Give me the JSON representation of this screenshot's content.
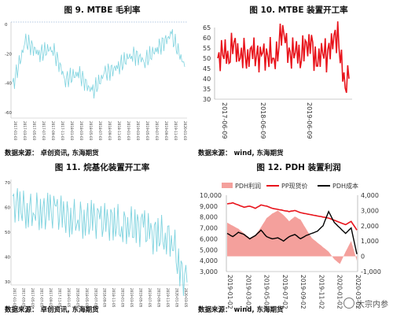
{
  "panels": {
    "p9": {
      "title": "图 9. MTBE 毛利率",
      "source": "数据来源： 卓创资讯, 东海期货"
    },
    "p10": {
      "title": "图 10. MTBE 装置开工率",
      "source": "数据来源： wind, 东海期货"
    },
    "p11": {
      "title": "图 11. 烷基化装置开工率",
      "source": "数据来源： 卓创资讯, 东海期货"
    },
    "p12": {
      "title": "图 12. PDH 装置利润",
      "source": "数据来源： wind, 东海期货"
    }
  },
  "watermark": "大宗内参",
  "colors": {
    "cyan": "#7fd3df",
    "red": "#e8131b",
    "pink": "#f4a09c",
    "black": "#000000"
  },
  "chart_data": [
    {
      "id": "mtbe-margin",
      "type": "line",
      "title": "",
      "x": [
        "2017-01-03",
        "2017-04-03",
        "2017-07-03",
        "2017-10-03",
        "2018-01-03",
        "2018-04-03",
        "2018-07-03",
        "2018-10-03",
        "2019-01-03",
        "2019-04-03",
        "2019-07-03",
        "2019-10-03",
        "2020-01-03",
        "2020-03-03"
      ],
      "yticks": [
        "0",
        "-20",
        "-40",
        "-60"
      ],
      "ylim": [
        -70,
        5
      ],
      "xticks": [
        "2017-01-03",
        "2017-03-03",
        "2017-05-03",
        "2017-07-03",
        "2017-09-03",
        "2017-11-03",
        "2018-01-03",
        "2018-03-03",
        "2018-05-03",
        "2018-07-03",
        "2018-09-03",
        "2018-11-03",
        "2019-01-03",
        "2019-03-03",
        "2019-05-03",
        "2019-07-03",
        "2019-09-03",
        "2019-11-03",
        "2020-01-03"
      ],
      "series": [
        {
          "values": [
            -45,
            -10,
            -20,
            -15,
            -40,
            -35,
            -50,
            -35,
            -30,
            -20,
            -25,
            -15,
            -5,
            -30
          ]
        }
      ],
      "grid": false
    },
    {
      "id": "mtbe-operating-rate",
      "type": "line",
      "title": "",
      "yticks": [
        "65",
        "60",
        "55",
        "50",
        "45",
        "40",
        "35",
        "30"
      ],
      "ylim": [
        30,
        65
      ],
      "xticks": [
        "2017-06-09",
        "2018-06-09",
        "2019-06-09"
      ],
      "series": [
        {
          "values": [
            47,
            53,
            56,
            50,
            58,
            52,
            48,
            54,
            50,
            57,
            52,
            48,
            52,
            49,
            55,
            50,
            54,
            62,
            58,
            50,
            54,
            57,
            50,
            55,
            53,
            57,
            49,
            52,
            56,
            50,
            53,
            58,
            61,
            50,
            38,
            40
          ]
        }
      ],
      "grid": false
    },
    {
      "id": "alkylation-operating-rate",
      "type": "line",
      "title": "",
      "yticks": [
        "70",
        "60",
        "50",
        "40",
        "30"
      ],
      "ylim": [
        30,
        72
      ],
      "xticks": [
        "2017-01-05",
        "2017-03-05",
        "2017-05-05",
        "2017-07-05",
        "2017-09-05",
        "2017-11-05",
        "2018-01-05",
        "2018-03-05",
        "2018-05-05",
        "2018-07-05",
        "2018-09-05",
        "2018-11-05",
        "2019-01-05",
        "2019-03-05",
        "2019-05-05",
        "2019-07-05",
        "2019-09-05",
        "2019-11-05",
        "2020-01-05",
        "2020-03-05"
      ],
      "series": [
        {
          "values": [
            63,
            62,
            60,
            61,
            59,
            60,
            60,
            58,
            57,
            58,
            56,
            57,
            56,
            55,
            56,
            54,
            55,
            53,
            54,
            50,
            51,
            50,
            49,
            36,
            31
          ]
        }
      ],
      "grid": false
    },
    {
      "id": "pdh-profit",
      "type": "line",
      "title": "",
      "legend": [
        "PDH利润",
        "PP现货价",
        "PDH成本"
      ],
      "left_yticks": [
        "10,000",
        "9,000",
        "8,000",
        "7,000",
        "6,000",
        "5,000",
        "4,000",
        "3,000"
      ],
      "right_yticks": [
        "4,000",
        "3,000",
        "2,000",
        "1,000",
        "0",
        "-1,000"
      ],
      "left_ylim": [
        3000,
        10000
      ],
      "right_ylim": [
        -1000,
        4000
      ],
      "xticks": [
        "2019-01-02",
        "2019-03-02",
        "2019-05-02",
        "2019-07-02",
        "2019-09-02",
        "2019-11-02",
        "2020-01-02",
        "2020-03-02"
      ],
      "series": [
        {
          "name": "PDH利润",
          "axis": "right",
          "values": [
            2200,
            2000,
            1800,
            1500,
            1200,
            1400,
            1900,
            2500,
            2800,
            3000,
            2700,
            2300,
            2600,
            2400,
            1800,
            1200,
            900,
            600,
            300,
            -200,
            -500,
            300,
            1000,
            -300
          ]
        },
        {
          "name": "PP现货价",
          "axis": "left",
          "values": [
            9200,
            9300,
            9100,
            8900,
            9000,
            8800,
            9100,
            9000,
            8800,
            8700,
            8600,
            8500,
            8600,
            8400,
            8300,
            8200,
            8100,
            8000,
            7900,
            7700,
            7500,
            7300,
            7600,
            6800
          ]
        },
        {
          "name": "PDH成本",
          "axis": "left",
          "values": [
            6500,
            6200,
            6600,
            6400,
            6000,
            6300,
            6800,
            6200,
            6000,
            6100,
            5800,
            6200,
            6400,
            6000,
            6300,
            6500,
            6700,
            7200,
            8500,
            7500,
            7000,
            6500,
            7000,
            4600
          ]
        }
      ],
      "grid": false
    }
  ]
}
